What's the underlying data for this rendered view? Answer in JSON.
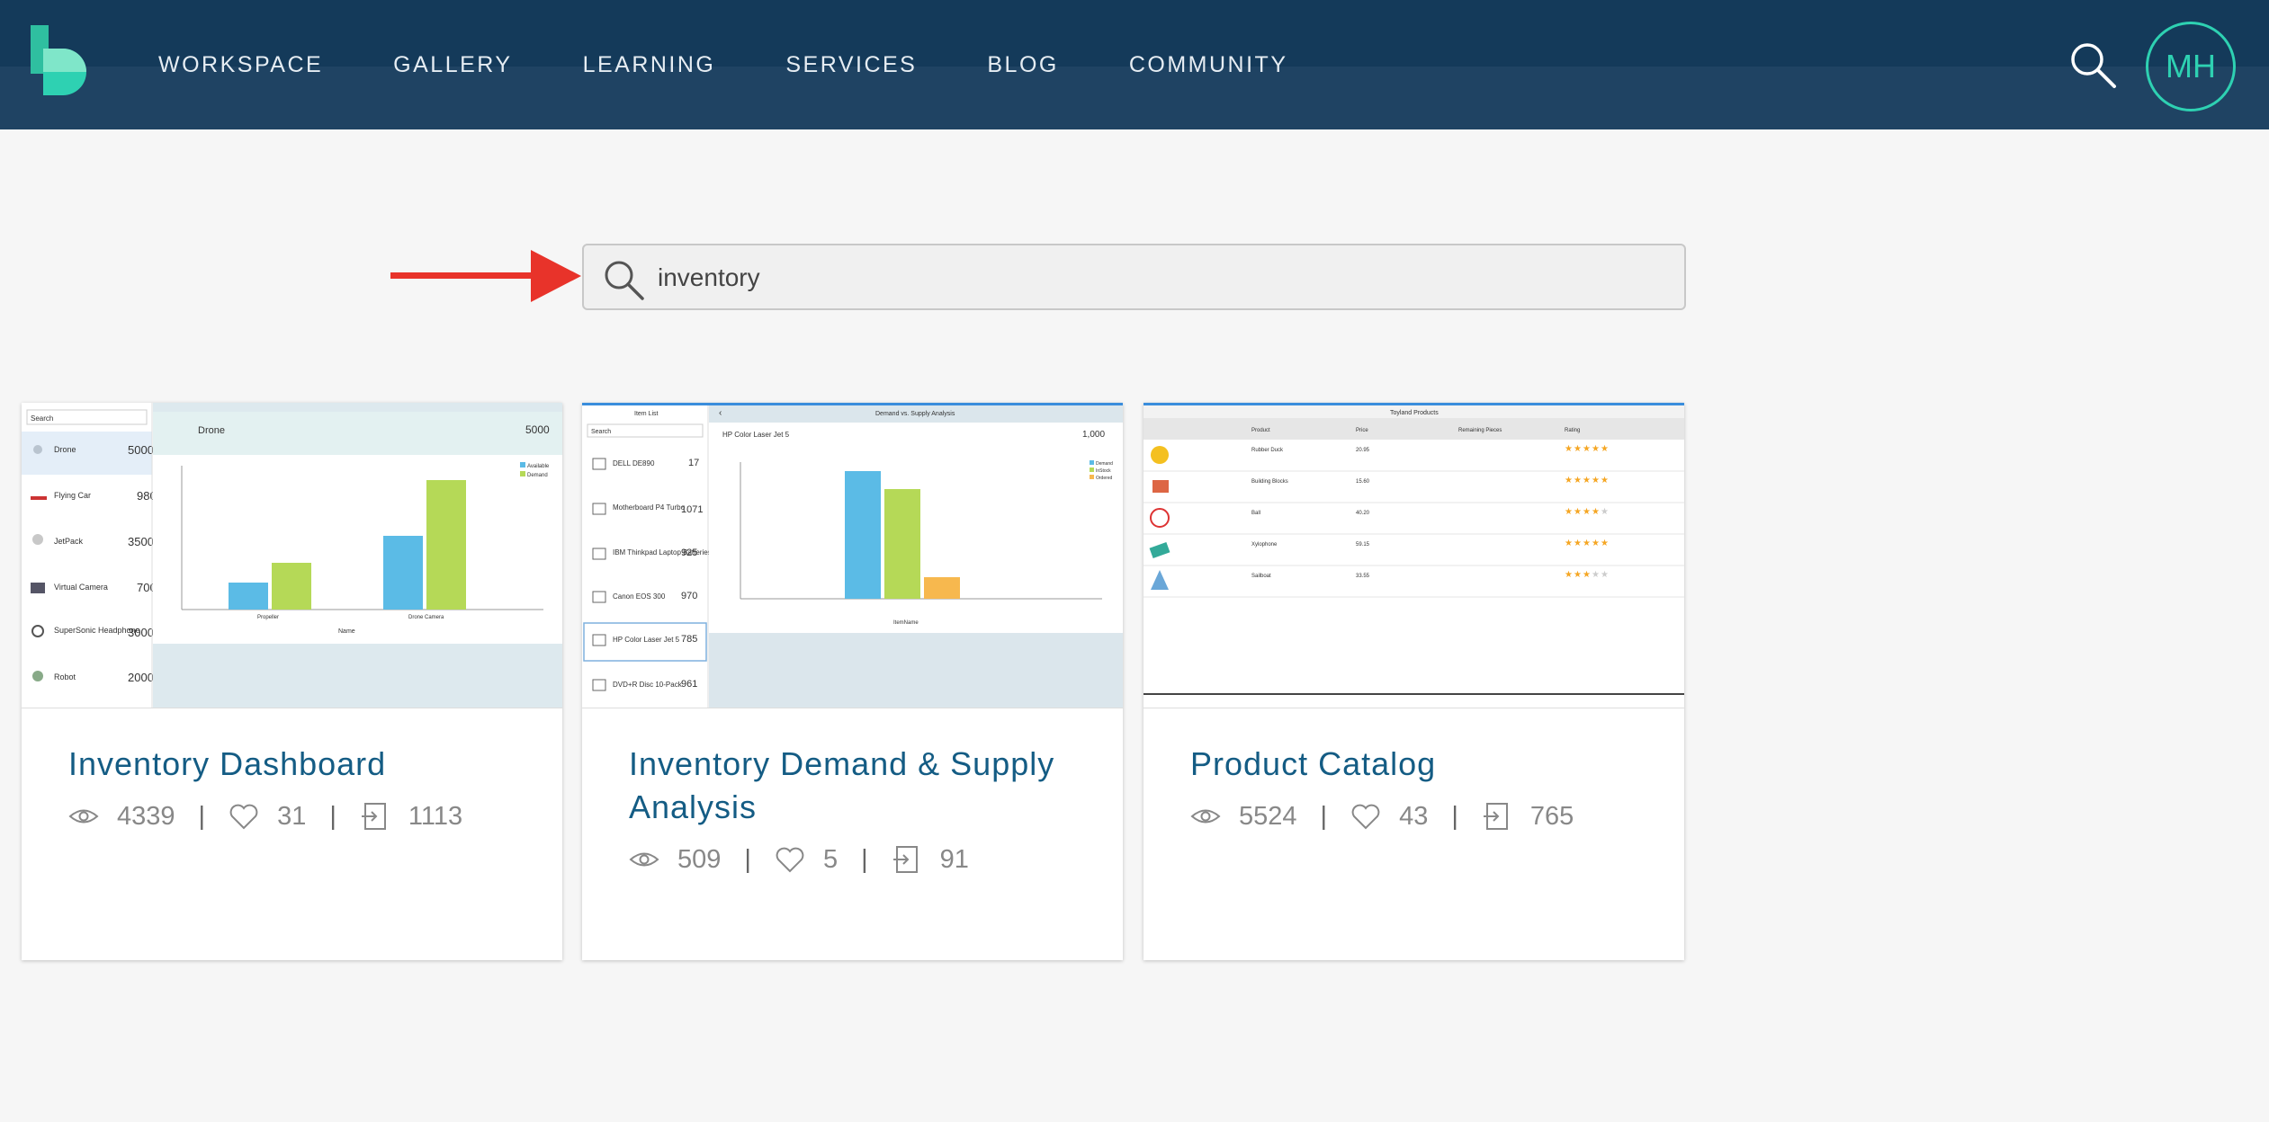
{
  "nav": {
    "items": [
      "WORKSPACE",
      "GALLERY",
      "LEARNING",
      "SERVICES",
      "BLOG",
      "COMMUNITY"
    ],
    "avatar_initials": "MH"
  },
  "search": {
    "value": "inventory",
    "icon": "search-icon"
  },
  "colors": {
    "header": "#1f4363",
    "accent": "#2ed1b2",
    "title": "#145c84",
    "arrow": "#e8332a"
  },
  "cards": [
    {
      "title": "Inventory Dashboard",
      "views": "4339",
      "likes": "31",
      "copies": "1113",
      "thumb": {
        "search": "Search",
        "header_name": "Drone",
        "header_value": "5000",
        "items": [
          {
            "name": "Drone",
            "value": "5000"
          },
          {
            "name": "Flying Car",
            "value": "980"
          },
          {
            "name": "JetPack",
            "value": "3500"
          },
          {
            "name": "Virtual Camera",
            "value": "700"
          },
          {
            "name": "SuperSonic Headphone",
            "value": "3000"
          },
          {
            "name": "Robot",
            "value": "2000"
          }
        ],
        "legend": [
          "Available",
          "Demand"
        ],
        "x_labels": [
          "Propeller",
          "Drone Camera"
        ],
        "xlabel": "Name"
      }
    },
    {
      "title": "Inventory Demand & Supply Analysis",
      "views": "509",
      "likes": "5",
      "copies": "91",
      "thumb": {
        "list_title": "Item List",
        "panel_title": "Demand vs. Supply Analysis",
        "search": "Search",
        "header_name": "HP Color Laser Jet 5",
        "header_value": "1,000",
        "items": [
          {
            "name": "DELL DE890",
            "value": "17"
          },
          {
            "name": "Motherboard P4 Turbo",
            "value": "1071"
          },
          {
            "name": "IBM Thinkpad Laptop Batteries...",
            "value": "925"
          },
          {
            "name": "Canon EOS 300",
            "value": "970"
          },
          {
            "name": "HP Color Laser Jet 5",
            "value": "785"
          },
          {
            "name": "DVD+R Disc 10-Pack",
            "value": "961"
          }
        ],
        "legend": [
          "Demand",
          "InStock",
          "Ordered"
        ],
        "xlabel": "ItemName"
      }
    },
    {
      "title": "Product Catalog",
      "views": "5524",
      "likes": "43",
      "copies": "765",
      "thumb": {
        "table_title": "Toyland Products",
        "columns": [
          "Product",
          "Price",
          "Remaining Pieces",
          "Rating"
        ],
        "rows": [
          {
            "name": "Rubber Duck",
            "price": "20.95",
            "rating": 4.5
          },
          {
            "name": "Building Blocks",
            "price": "15.60",
            "rating": 4.5
          },
          {
            "name": "Ball",
            "price": "40.20",
            "rating": 3.5
          },
          {
            "name": "Xylophone",
            "price": "59.15",
            "rating": 4.5
          },
          {
            "name": "Sailboat",
            "price": "33.55",
            "rating": 3
          }
        ]
      }
    }
  ]
}
